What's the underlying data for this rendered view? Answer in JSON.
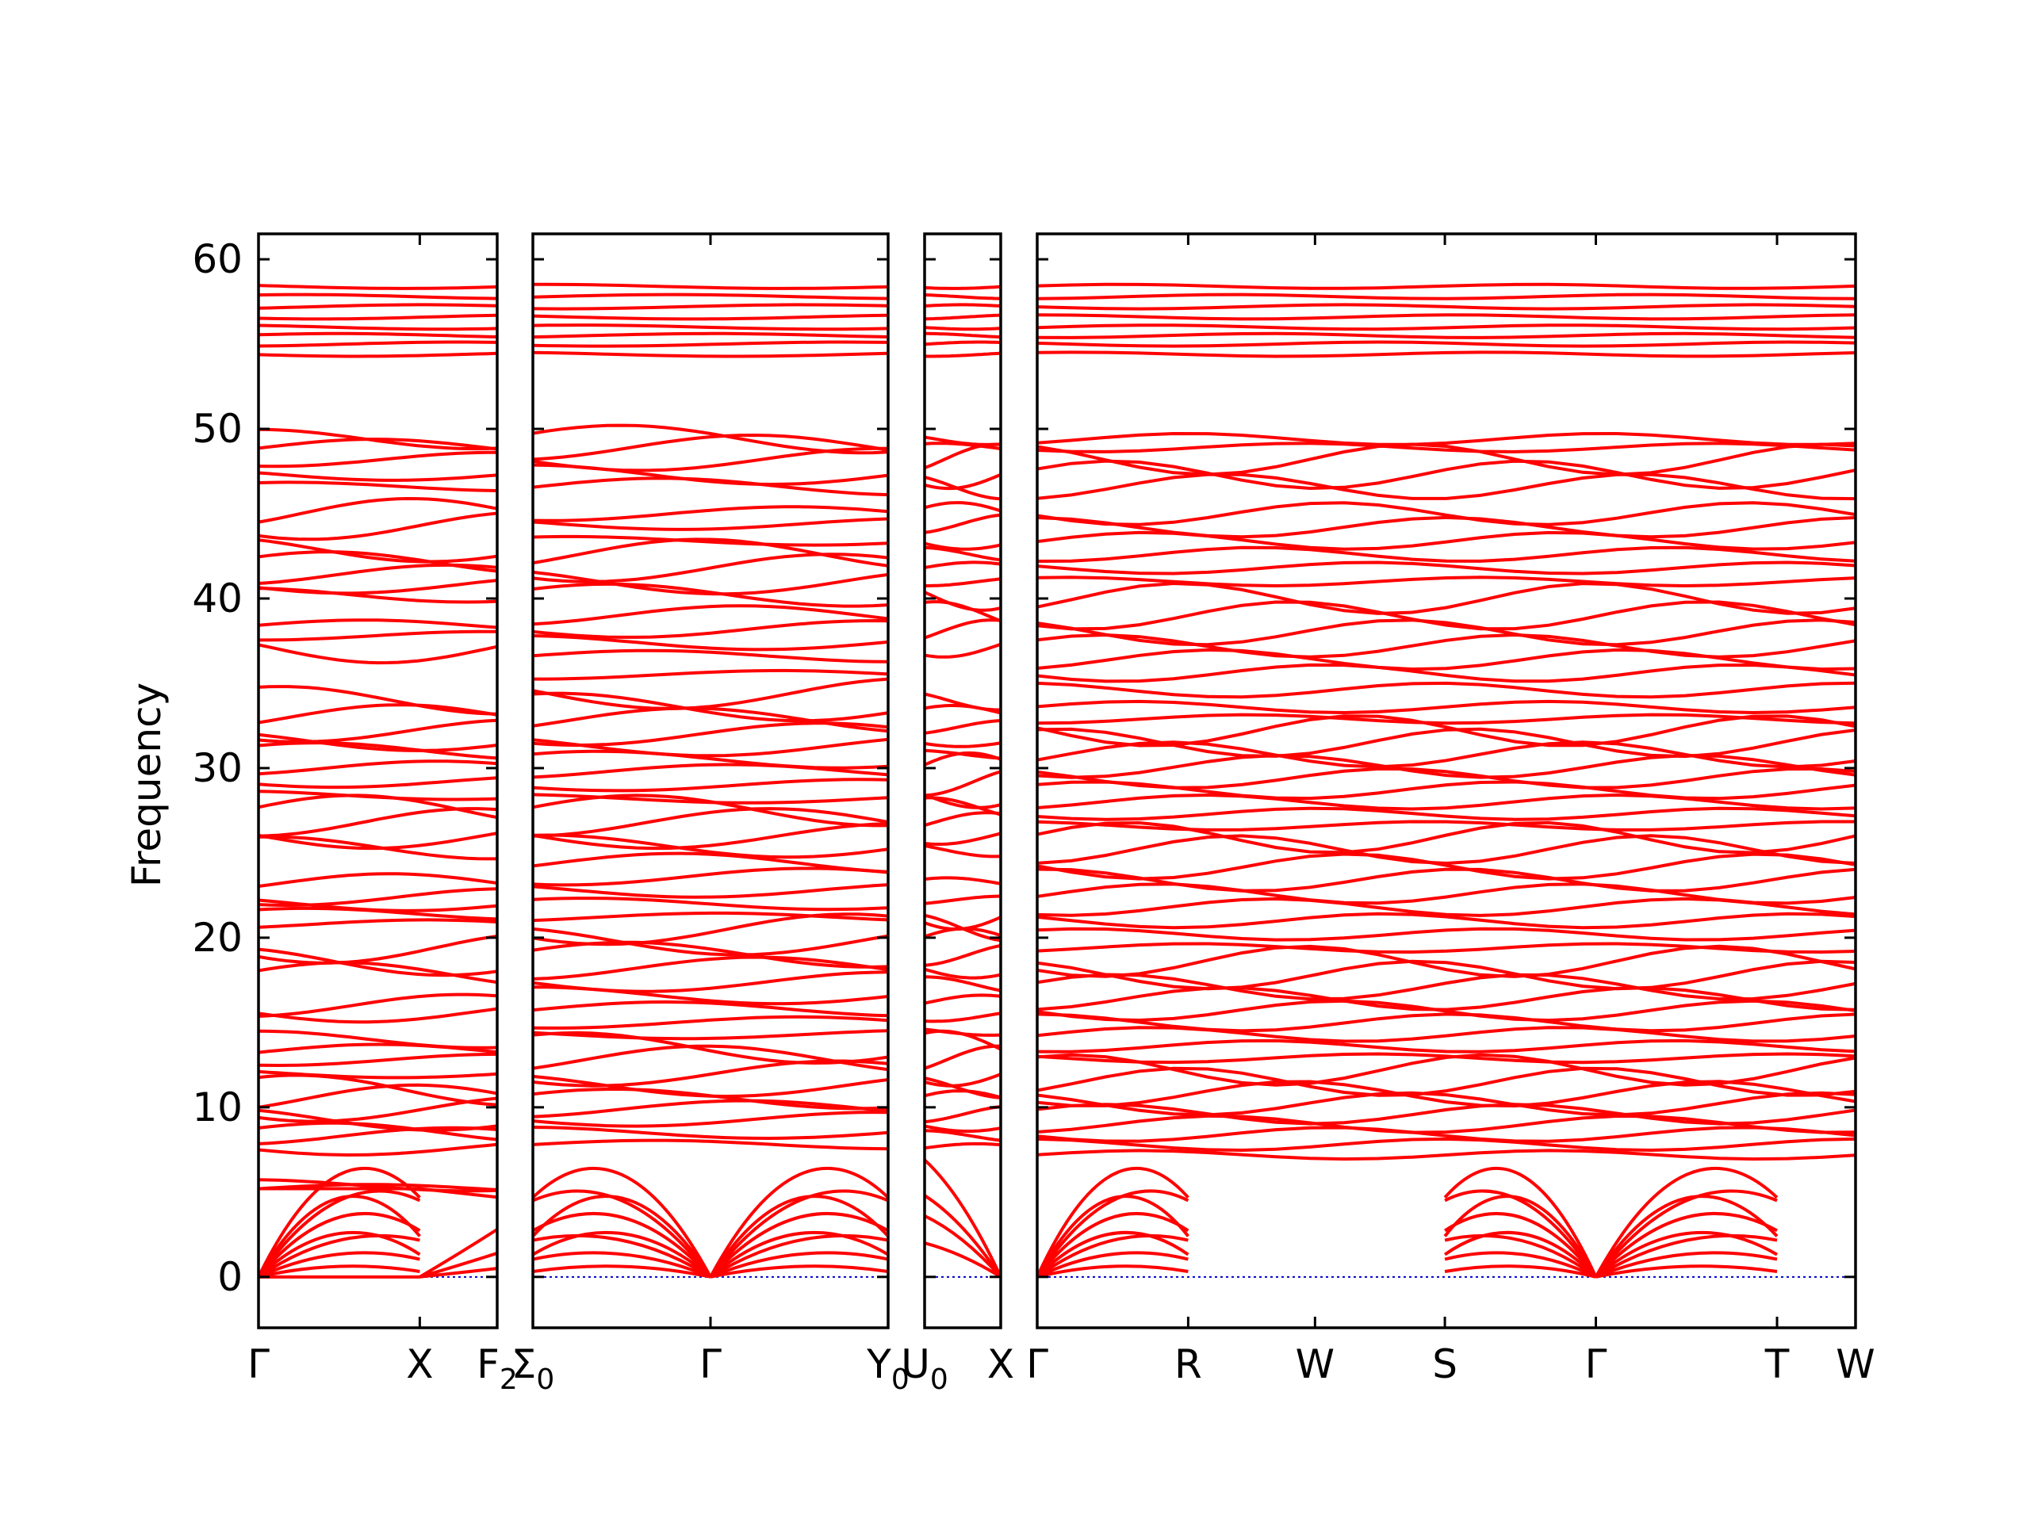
{
  "chart_data": {
    "type": "line",
    "title": "",
    "ylabel": "Frequency",
    "xlabel": "",
    "ylim": [
      -3,
      61.5
    ],
    "yticks": [
      0,
      10,
      20,
      30,
      40,
      50,
      60
    ],
    "ytick_labels": [
      "0",
      "10",
      "20",
      "30",
      "40",
      "50",
      "60"
    ],
    "grid": false,
    "legend": "none",
    "colors": {
      "bands": "#ff0000",
      "zero_line": "#0000cc",
      "frame": "#000000"
    },
    "panels": [
      {
        "id": "panel-1",
        "kpoints": [
          {
            "label": "Γ",
            "sub": "",
            "pos": 0.0
          },
          {
            "label": "X",
            "sub": "",
            "pos": 1.0
          },
          {
            "label": "F",
            "sub": "2",
            "pos": 1.48
          }
        ],
        "flat_bands": [
          5.2,
          5.4,
          7.6,
          8.3,
          8.5,
          9.3,
          9.9,
          10.5,
          11.0,
          12.0,
          12.8,
          13.3,
          14.0,
          15.6,
          16.0,
          17.8,
          18.6,
          19.4,
          20.8,
          21.4,
          22.0,
          22.4,
          23.2,
          25.3,
          26.0,
          26.8,
          27.5,
          28.4,
          29.2,
          30.0,
          31.0,
          31.6,
          32.2,
          33.0,
          34.0,
          37.1,
          37.8,
          38.4,
          40.2,
          40.8,
          41.4,
          42.1,
          42.9,
          44.3,
          45.0,
          46.6,
          47.3,
          48.2,
          48.9,
          49.4,
          54.4,
          55.0,
          55.5,
          56.0,
          56.6,
          57.2,
          57.8,
          58.4
        ]
      },
      {
        "id": "panel-2",
        "kpoints": [
          {
            "label": "Σ",
            "sub": "0",
            "pos": 0.0
          },
          {
            "label": "Γ",
            "sub": "",
            "pos": 1.0
          },
          {
            "label": "Y",
            "sub": "0",
            "pos": 2.0
          }
        ],
        "flat_bands": [
          7.8,
          8.5,
          9.3,
          9.9,
          10.5,
          11.3,
          12.0,
          12.8,
          13.5,
          14.3,
          15.0,
          15.8,
          16.6,
          17.4,
          18.2,
          19.0,
          19.8,
          20.5,
          21.2,
          22.0,
          22.8,
          23.6,
          24.4,
          25.4,
          26.0,
          26.8,
          27.5,
          28.2,
          29.0,
          29.8,
          30.5,
          31.3,
          32.0,
          32.8,
          33.6,
          34.4,
          35.5,
          36.6,
          37.4,
          38.2,
          39.0,
          40.2,
          41.0,
          41.8,
          42.6,
          43.4,
          44.4,
          45.0,
          46.6,
          47.3,
          48.2,
          48.9,
          49.4,
          54.4,
          55.0,
          55.5,
          56.0,
          56.6,
          57.2,
          57.8,
          58.4
        ]
      },
      {
        "id": "panel-3",
        "kpoints": [
          {
            "label": "U",
            "sub": "0",
            "pos": 0.0
          },
          {
            "label": "X",
            "sub": "",
            "pos": 1.0
          }
        ],
        "flat_bands": [
          7.6,
          8.3,
          9.0,
          9.6,
          10.4,
          11.2,
          12.0,
          12.8,
          13.6,
          14.5,
          15.4,
          16.2,
          17.2,
          18.2,
          19.0,
          19.8,
          20.6,
          21.4,
          22.2,
          23.2,
          25.2,
          26.0,
          26.8,
          27.6,
          28.4,
          29.2,
          30.0,
          30.8,
          31.6,
          32.4,
          33.2,
          34.0,
          37.2,
          38.0,
          39.0,
          40.2,
          41.0,
          41.8,
          42.6,
          43.4,
          44.4,
          45.0,
          46.6,
          47.3,
          48.2,
          48.9,
          49.4,
          54.4,
          55.0,
          55.5,
          56.0,
          56.6,
          57.2,
          57.8,
          58.4
        ]
      },
      {
        "id": "panel-4",
        "kpoints": [
          {
            "label": "Γ",
            "sub": "",
            "pos": 0.0
          },
          {
            "label": "R",
            "sub": "",
            "pos": 1.0
          },
          {
            "label": "W",
            "sub": "",
            "pos": 1.84
          },
          {
            "label": "S",
            "sub": "",
            "pos": 2.7
          },
          {
            "label": "Γ",
            "sub": "",
            "pos": 3.7
          },
          {
            "label": "T",
            "sub": "",
            "pos": 4.9
          },
          {
            "label": "W",
            "sub": "",
            "pos": 5.42
          }
        ],
        "flat_bands": [
          7.2,
          7.8,
          8.4,
          9.0,
          9.6,
          10.2,
          10.8,
          11.5,
          12.2,
          12.9,
          13.6,
          14.3,
          15.0,
          15.7,
          16.4,
          17.1,
          17.8,
          18.6,
          19.4,
          20.2,
          21.0,
          21.8,
          22.6,
          23.4,
          24.2,
          25.2,
          25.9,
          26.6,
          27.3,
          28.0,
          28.7,
          29.4,
          30.1,
          30.8,
          31.5,
          32.2,
          32.9,
          33.6,
          34.6,
          35.6,
          36.4,
          37.2,
          38.0,
          39.0,
          40.0,
          41.0,
          41.8,
          42.6,
          43.4,
          44.2,
          45.0,
          46.6,
          47.3,
          48.2,
          48.9,
          49.4,
          54.4,
          55.0,
          55.5,
          56.0,
          56.6,
          57.2,
          57.8,
          58.4
        ]
      }
    ]
  }
}
